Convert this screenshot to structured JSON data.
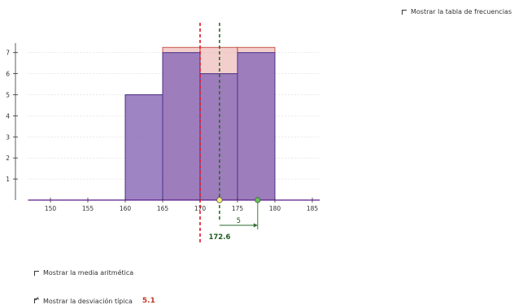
{
  "controls": {
    "frequency_table_label": "Mostrar la tabla de frecuencias",
    "frequency_table_checked": false,
    "mean_label": "Mostrar la media aritmética",
    "mean_checked": false,
    "stdev_label": "Mostrar la desviación típica",
    "stdev_checked": true,
    "stdev_value": "5.1"
  },
  "chart_data": {
    "type": "bar",
    "x_ticks": [
      150,
      155,
      160,
      165,
      170,
      175,
      180,
      185
    ],
    "y_ticks": [
      1,
      2,
      3,
      4,
      5,
      6,
      7
    ],
    "xlim": [
      147,
      186
    ],
    "ylim": [
      0,
      7.5
    ],
    "bins": [
      {
        "from": 160,
        "to": 165,
        "value": 5
      },
      {
        "from": 165,
        "to": 170,
        "value": 7
      },
      {
        "from": 170,
        "to": 175,
        "value": 6
      },
      {
        "from": 175,
        "to": 180,
        "value": 7
      }
    ],
    "overlay_bins": [
      {
        "from": 165,
        "to": 170,
        "value": 7.25
      },
      {
        "from": 170,
        "to": 175,
        "value": 7.25
      },
      {
        "from": 175,
        "to": 180,
        "value": 7.25
      }
    ],
    "mean_marker": 172.6,
    "mean_label": "172.6",
    "stdev_marker": 177.7,
    "stdev_label": "5",
    "red_dashed_line_x": 170,
    "colors": {
      "bar_fill": "#8e6fb8",
      "bar_stroke": "#4a2f86",
      "overlay_fill": "#e7a6a2",
      "axis": "#5a1c8a",
      "red_line": "#e0162b",
      "green": "#2d6a2d",
      "mean_point": "#f2ee7a",
      "stdev_point": "#6bbf5c"
    }
  }
}
